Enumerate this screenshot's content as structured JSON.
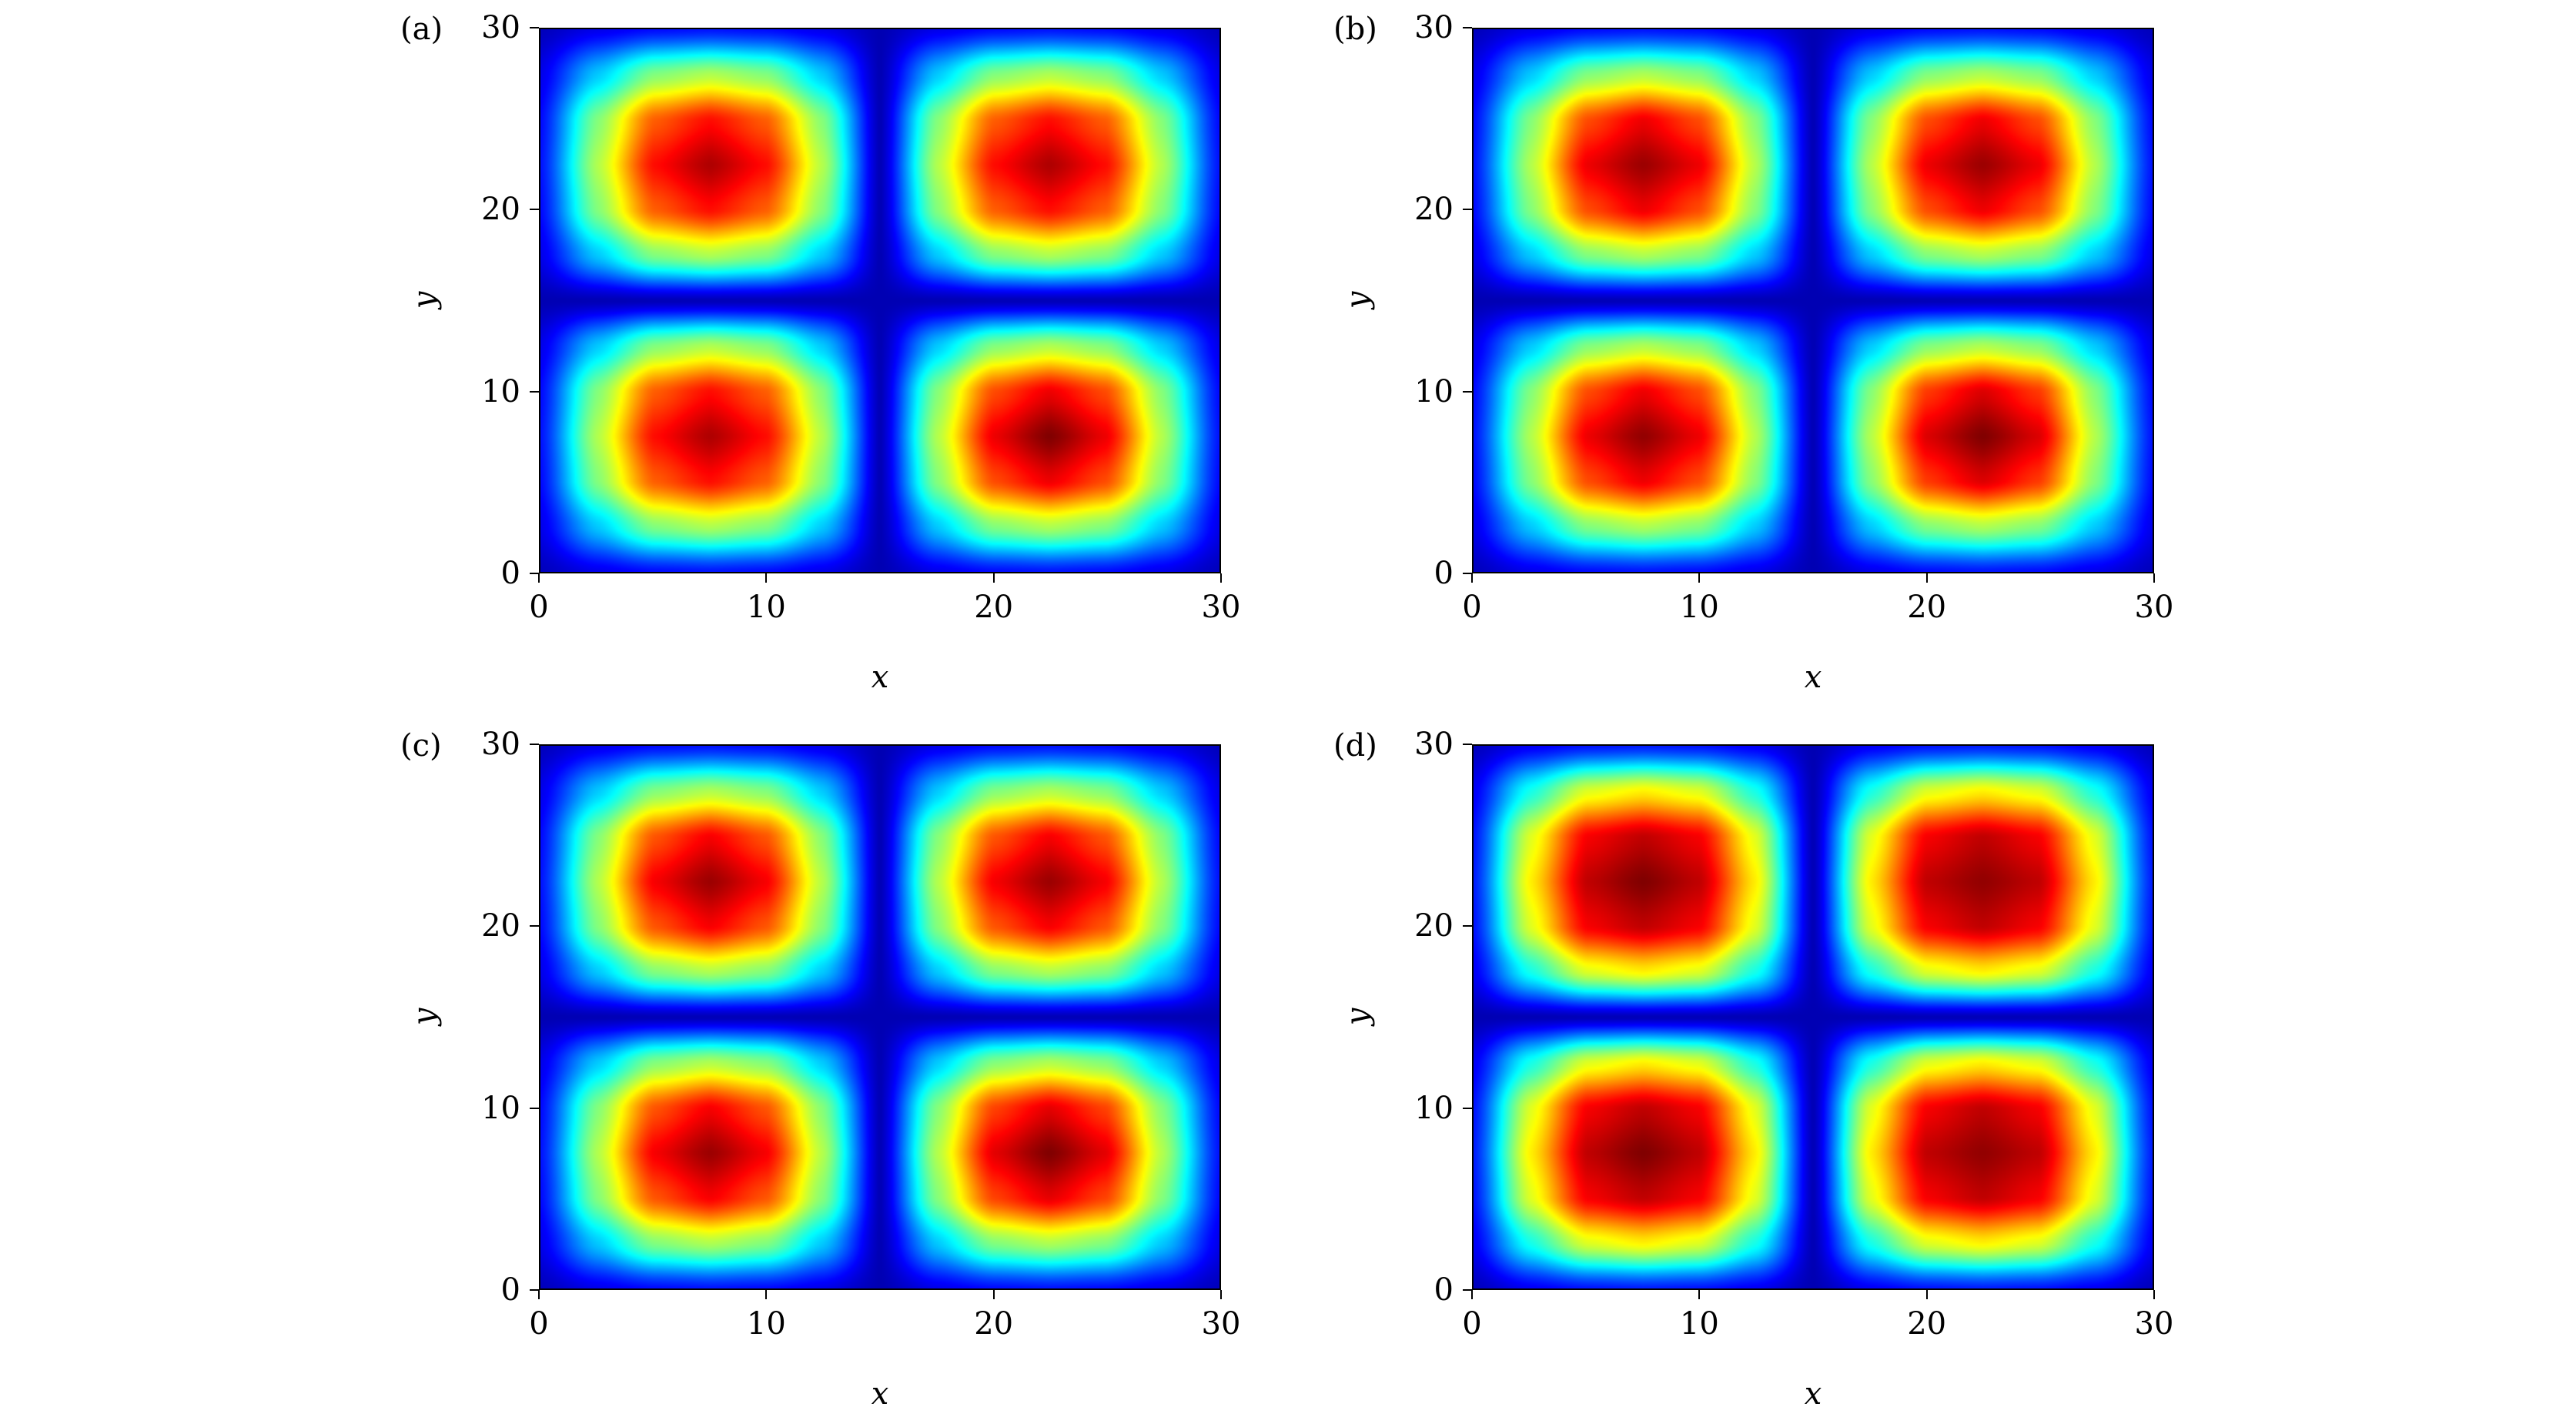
{
  "chart_data": [
    {
      "panel_label": "(a)",
      "type": "heatmap",
      "colormap": "jet",
      "xlabel": "x",
      "ylabel": "y",
      "xlim": [
        0,
        30
      ],
      "ylim": [
        0,
        30
      ],
      "xticks": [
        "0",
        "10",
        "20",
        "30"
      ],
      "yticks": [
        "0",
        "10",
        "20",
        "30"
      ],
      "grid_x": [
        0,
        2.5,
        5,
        7.5,
        10,
        12.5,
        15,
        17.5,
        20,
        22.5,
        25,
        27.5,
        30
      ],
      "grid_y": [
        0,
        2.5,
        5,
        7.5,
        10,
        12.5,
        15,
        17.5,
        20,
        22.5,
        25,
        27.5,
        30
      ],
      "z": [
        [
          0.01,
          0.06,
          0.09,
          0.1,
          0.09,
          0.06,
          0,
          0.06,
          0.09,
          0.1,
          0.09,
          0.06,
          0.01
        ],
        [
          0.06,
          0.3,
          0.5,
          0.55,
          0.5,
          0.3,
          0,
          0.3,
          0.5,
          0.55,
          0.5,
          0.3,
          0.06
        ],
        [
          0.09,
          0.5,
          0.81,
          0.9,
          0.81,
          0.5,
          0,
          0.5,
          0.83,
          0.93,
          0.83,
          0.5,
          0.09
        ],
        [
          0.1,
          0.55,
          0.9,
          1,
          0.9,
          0.55,
          0,
          0.55,
          0.93,
          1.05,
          0.93,
          0.55,
          0.1
        ],
        [
          0.09,
          0.5,
          0.81,
          0.9,
          0.81,
          0.5,
          0,
          0.5,
          0.83,
          0.93,
          0.83,
          0.5,
          0.09
        ],
        [
          0.06,
          0.3,
          0.5,
          0.55,
          0.5,
          0.3,
          0,
          0.3,
          0.5,
          0.55,
          0.5,
          0.3,
          0.06
        ],
        [
          0,
          0,
          0,
          0,
          0,
          0,
          0,
          0,
          0,
          0,
          0,
          0,
          0
        ],
        [
          0.06,
          0.3,
          0.5,
          0.55,
          0.5,
          0.3,
          0,
          0.3,
          0.5,
          0.55,
          0.5,
          0.3,
          0.06
        ],
        [
          0.09,
          0.5,
          0.81,
          0.9,
          0.81,
          0.5,
          0,
          0.5,
          0.81,
          0.9,
          0.81,
          0.5,
          0.09
        ],
        [
          0.1,
          0.55,
          0.9,
          1,
          0.9,
          0.55,
          0,
          0.55,
          0.9,
          1,
          0.9,
          0.55,
          0.1
        ],
        [
          0.09,
          0.5,
          0.81,
          0.9,
          0.81,
          0.5,
          0,
          0.5,
          0.81,
          0.9,
          0.81,
          0.5,
          0.09
        ],
        [
          0.06,
          0.3,
          0.5,
          0.55,
          0.5,
          0.3,
          0,
          0.3,
          0.5,
          0.55,
          0.5,
          0.3,
          0.06
        ],
        [
          0.01,
          0.06,
          0.09,
          0.1,
          0.09,
          0.06,
          0,
          0.06,
          0.09,
          0.1,
          0.09,
          0.06,
          0.01
        ]
      ]
    },
    {
      "panel_label": "(b)",
      "type": "heatmap",
      "colormap": "jet",
      "xlabel": "x",
      "ylabel": "y",
      "xlim": [
        0,
        30
      ],
      "ylim": [
        0,
        30
      ],
      "xticks": [
        "0",
        "10",
        "20",
        "30"
      ],
      "yticks": [
        "0",
        "10",
        "20",
        "30"
      ],
      "grid_x": [
        0,
        2.5,
        5,
        7.5,
        10,
        12.5,
        15,
        17.5,
        20,
        22.5,
        25,
        27.5,
        30
      ],
      "grid_y": [
        0,
        2.5,
        5,
        7.5,
        10,
        12.5,
        15,
        17.5,
        20,
        22.5,
        25,
        27.5,
        30
      ],
      "z": [
        [
          0.01,
          0.06,
          0.09,
          0.1,
          0.09,
          0.06,
          0,
          0.06,
          0.09,
          0.1,
          0.09,
          0.06,
          0.01
        ],
        [
          0.06,
          0.3,
          0.5,
          0.55,
          0.5,
          0.3,
          0,
          0.3,
          0.5,
          0.55,
          0.5,
          0.3,
          0.06
        ],
        [
          0.09,
          0.5,
          0.83,
          0.93,
          0.83,
          0.5,
          0,
          0.5,
          0.85,
          0.95,
          0.85,
          0.5,
          0.09
        ],
        [
          0.1,
          0.55,
          0.93,
          1.03,
          0.93,
          0.55,
          0,
          0.55,
          0.95,
          1.05,
          0.95,
          0.55,
          0.1
        ],
        [
          0.09,
          0.5,
          0.83,
          0.93,
          0.83,
          0.5,
          0,
          0.5,
          0.85,
          0.95,
          0.85,
          0.5,
          0.09
        ],
        [
          0.06,
          0.3,
          0.5,
          0.55,
          0.5,
          0.3,
          0,
          0.3,
          0.5,
          0.55,
          0.5,
          0.3,
          0.06
        ],
        [
          0,
          0,
          0,
          0,
          0,
          0,
          0,
          0,
          0,
          0,
          0,
          0,
          0
        ],
        [
          0.06,
          0.3,
          0.5,
          0.55,
          0.5,
          0.3,
          0,
          0.3,
          0.5,
          0.55,
          0.5,
          0.3,
          0.06
        ],
        [
          0.09,
          0.5,
          0.83,
          0.93,
          0.83,
          0.5,
          0,
          0.5,
          0.83,
          0.93,
          0.83,
          0.5,
          0.09
        ],
        [
          0.1,
          0.55,
          0.93,
          1.02,
          0.93,
          0.55,
          0,
          0.55,
          0.93,
          1.02,
          0.93,
          0.55,
          0.1
        ],
        [
          0.09,
          0.5,
          0.83,
          0.93,
          0.83,
          0.5,
          0,
          0.5,
          0.83,
          0.93,
          0.83,
          0.5,
          0.09
        ],
        [
          0.06,
          0.3,
          0.5,
          0.55,
          0.5,
          0.3,
          0,
          0.3,
          0.5,
          0.55,
          0.5,
          0.3,
          0.06
        ],
        [
          0.01,
          0.06,
          0.09,
          0.1,
          0.09,
          0.06,
          0,
          0.06,
          0.09,
          0.1,
          0.09,
          0.06,
          0.01
        ]
      ]
    },
    {
      "panel_label": "(c)",
      "type": "heatmap",
      "colormap": "jet",
      "xlabel": "x",
      "ylabel": "y",
      "xlim": [
        0,
        30
      ],
      "ylim": [
        0,
        30
      ],
      "xticks": [
        "0",
        "10",
        "20",
        "30"
      ],
      "yticks": [
        "0",
        "10",
        "20",
        "30"
      ],
      "grid_x": [
        0,
        2.5,
        5,
        7.5,
        10,
        12.5,
        15,
        17.5,
        20,
        22.5,
        25,
        27.5,
        30
      ],
      "grid_y": [
        0,
        2.5,
        5,
        7.5,
        10,
        12.5,
        15,
        17.5,
        20,
        22.5,
        25,
        27.5,
        30
      ],
      "z": [
        [
          0.01,
          0.06,
          0.09,
          0.1,
          0.09,
          0.06,
          0,
          0.06,
          0.09,
          0.1,
          0.09,
          0.06,
          0.01
        ],
        [
          0.06,
          0.3,
          0.5,
          0.55,
          0.5,
          0.3,
          0,
          0.3,
          0.5,
          0.55,
          0.5,
          0.3,
          0.06
        ],
        [
          0.09,
          0.5,
          0.82,
          0.92,
          0.82,
          0.5,
          0,
          0.5,
          0.84,
          0.94,
          0.84,
          0.5,
          0.09
        ],
        [
          0.1,
          0.55,
          0.92,
          1.02,
          0.92,
          0.55,
          0,
          0.55,
          0.94,
          1.05,
          0.94,
          0.55,
          0.1
        ],
        [
          0.09,
          0.5,
          0.82,
          0.92,
          0.82,
          0.5,
          0,
          0.5,
          0.84,
          0.94,
          0.84,
          0.5,
          0.09
        ],
        [
          0.06,
          0.3,
          0.5,
          0.55,
          0.5,
          0.3,
          0,
          0.3,
          0.5,
          0.55,
          0.5,
          0.3,
          0.06
        ],
        [
          0,
          0,
          0,
          0,
          0,
          0,
          0,
          0,
          0,
          0,
          0,
          0,
          0
        ],
        [
          0.06,
          0.3,
          0.5,
          0.55,
          0.5,
          0.3,
          0,
          0.3,
          0.5,
          0.55,
          0.5,
          0.3,
          0.06
        ],
        [
          0.09,
          0.5,
          0.82,
          0.92,
          0.82,
          0.5,
          0,
          0.5,
          0.82,
          0.92,
          0.82,
          0.5,
          0.09
        ],
        [
          0.1,
          0.55,
          0.92,
          1.02,
          0.92,
          0.55,
          0,
          0.55,
          0.92,
          1.02,
          0.92,
          0.55,
          0.1
        ],
        [
          0.09,
          0.5,
          0.82,
          0.92,
          0.82,
          0.5,
          0,
          0.5,
          0.82,
          0.92,
          0.82,
          0.5,
          0.09
        ],
        [
          0.06,
          0.3,
          0.5,
          0.55,
          0.5,
          0.3,
          0,
          0.3,
          0.5,
          0.55,
          0.5,
          0.3,
          0.06
        ],
        [
          0.01,
          0.06,
          0.09,
          0.1,
          0.09,
          0.06,
          0,
          0.06,
          0.09,
          0.1,
          0.09,
          0.06,
          0.01
        ]
      ]
    },
    {
      "panel_label": "(d)",
      "type": "heatmap",
      "colormap": "jet",
      "xlabel": "x",
      "ylabel": "y",
      "xlim": [
        0,
        30
      ],
      "ylim": [
        0,
        30
      ],
      "xticks": [
        "0",
        "10",
        "20",
        "30"
      ],
      "yticks": [
        "0",
        "10",
        "20",
        "30"
      ],
      "grid_x": [
        0,
        2.5,
        5,
        7.5,
        10,
        12.5,
        15,
        17.5,
        20,
        22.5,
        25,
        27.5,
        30
      ],
      "grid_y": [
        0,
        2.5,
        5,
        7.5,
        10,
        12.5,
        15,
        17.5,
        20,
        22.5,
        25,
        27.5,
        30
      ],
      "z": [
        [
          0.01,
          0.07,
          0.1,
          0.11,
          0.1,
          0.07,
          0,
          0.07,
          0.1,
          0.11,
          0.1,
          0.07,
          0.01
        ],
        [
          0.07,
          0.38,
          0.6,
          0.65,
          0.6,
          0.38,
          0,
          0.38,
          0.6,
          0.65,
          0.6,
          0.38,
          0.07
        ],
        [
          0.1,
          0.6,
          0.92,
          0.98,
          0.92,
          0.6,
          0,
          0.6,
          0.92,
          0.98,
          0.92,
          0.6,
          0.1
        ],
        [
          0.11,
          0.65,
          0.98,
          1.05,
          0.98,
          0.65,
          0,
          0.65,
          0.98,
          1.03,
          0.98,
          0.65,
          0.11
        ],
        [
          0.1,
          0.6,
          0.92,
          0.98,
          0.92,
          0.6,
          0,
          0.6,
          0.92,
          0.98,
          0.92,
          0.6,
          0.1
        ],
        [
          0.07,
          0.38,
          0.6,
          0.65,
          0.6,
          0.38,
          0,
          0.38,
          0.6,
          0.65,
          0.6,
          0.38,
          0.07
        ],
        [
          0,
          0,
          0,
          0,
          0,
          0,
          0,
          0,
          0,
          0,
          0,
          0,
          0
        ],
        [
          0.07,
          0.38,
          0.6,
          0.65,
          0.6,
          0.38,
          0,
          0.38,
          0.6,
          0.65,
          0.6,
          0.38,
          0.07
        ],
        [
          0.1,
          0.6,
          0.92,
          0.98,
          0.92,
          0.6,
          0,
          0.6,
          0.92,
          0.98,
          0.92,
          0.6,
          0.1
        ],
        [
          0.11,
          0.65,
          0.98,
          1.05,
          0.98,
          0.65,
          0,
          0.65,
          0.98,
          1.03,
          0.98,
          0.65,
          0.11
        ],
        [
          0.1,
          0.6,
          0.92,
          0.98,
          0.92,
          0.6,
          0,
          0.6,
          0.92,
          0.98,
          0.92,
          0.6,
          0.1
        ],
        [
          0.07,
          0.38,
          0.6,
          0.65,
          0.6,
          0.38,
          0,
          0.38,
          0.6,
          0.65,
          0.6,
          0.38,
          0.07
        ],
        [
          0.01,
          0.07,
          0.1,
          0.11,
          0.1,
          0.07,
          0,
          0.07,
          0.1,
          0.11,
          0.1,
          0.07,
          0.01
        ]
      ]
    }
  ]
}
